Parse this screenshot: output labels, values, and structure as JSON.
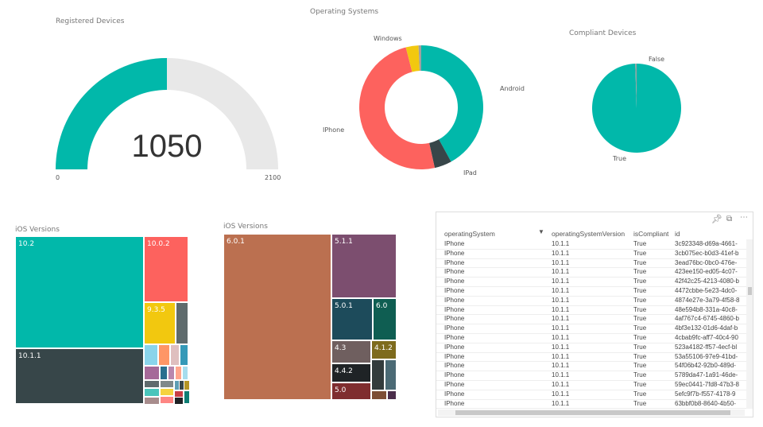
{
  "gauge": {
    "title": "Registered Devices",
    "value": 1050,
    "value_label": "1050",
    "min_label": "0",
    "max_label": "2100",
    "min": 0,
    "max": 2100,
    "fill_color": "#01B8AA",
    "track_color": "#E8E8E8"
  },
  "os_donut": {
    "title": "Operating Systems",
    "segments": [
      {
        "label": "Android",
        "value": 42,
        "color": "#01B8AA"
      },
      {
        "label": "IPad",
        "value": 4.5,
        "color": "#374649"
      },
      {
        "label": "IPhone",
        "value": 49.5,
        "color": "#FD625E"
      },
      {
        "label": "Windows",
        "value": 3.3,
        "color": "#F2C80F"
      },
      {
        "label": "",
        "value": 0.7,
        "color": "#A0A0A0"
      }
    ]
  },
  "compliant_pie": {
    "title": "Compliant Devices",
    "segments": [
      {
        "label": "True",
        "value": 99.5,
        "color": "#01B8AA"
      },
      {
        "label": "False",
        "value": 0.5,
        "color": "#A0A0A0"
      }
    ]
  },
  "treemap_left": {
    "title": "iOS Versions",
    "labels": [
      "10.2",
      "10.0.2",
      "9.3.5",
      "10.1.1"
    ]
  },
  "treemap_right": {
    "title": "iOS Versions",
    "labels": [
      "6.0.1",
      "5.1.1",
      "5.0.1",
      "6.0",
      "4.3",
      "4.1.2",
      "4.4.2",
      "5.0"
    ]
  },
  "table": {
    "columns": [
      "operatingSystem",
      "operatingSystemVersion",
      "isCompliant",
      "id"
    ],
    "rows": [
      [
        "IPhone",
        "10.1.1",
        "True",
        "3c923348-d69a-4661-"
      ],
      [
        "IPhone",
        "10.1.1",
        "True",
        "3cb075ec-b0d3-41ef-b"
      ],
      [
        "IPhone",
        "10.1.1",
        "True",
        "3ead76bc-0bc0-476e-"
      ],
      [
        "IPhone",
        "10.1.1",
        "True",
        "423ee150-ed05-4c07-"
      ],
      [
        "IPhone",
        "10.1.1",
        "True",
        "42f42c25-4213-4080-b"
      ],
      [
        "IPhone",
        "10.1.1",
        "True",
        "4472cbbe-5e23-4dc0-"
      ],
      [
        "IPhone",
        "10.1.1",
        "True",
        "4874e27e-3a79-4f58-8"
      ],
      [
        "IPhone",
        "10.1.1",
        "True",
        "48e594b8-331a-40c8-"
      ],
      [
        "IPhone",
        "10.1.1",
        "True",
        "4af767c4-6745-4860-b"
      ],
      [
        "IPhone",
        "10.1.1",
        "True",
        "4bf3e132-01d6-4daf-b"
      ],
      [
        "IPhone",
        "10.1.1",
        "True",
        "4cbab9fc-aff7-40c4-90"
      ],
      [
        "IPhone",
        "10.1.1",
        "True",
        "523a4182-ff57-4ecf-bl"
      ],
      [
        "IPhone",
        "10.1.1",
        "True",
        "53a55106-97e9-41bd-"
      ],
      [
        "IPhone",
        "10.1.1",
        "True",
        "54f06b42-92b0-489d-"
      ],
      [
        "IPhone",
        "10.1.1",
        "True",
        "5789da47-1a91-46de-"
      ],
      [
        "IPhone",
        "10.1.1",
        "True",
        "59ec0441-7fd8-47b3-8"
      ],
      [
        "IPhone",
        "10.1.1",
        "True",
        "5efc9f7b-f557-4178-9"
      ],
      [
        "IPhone",
        "10.1.1",
        "True",
        "63bbf0b8-8640-4b50-"
      ]
    ]
  }
}
